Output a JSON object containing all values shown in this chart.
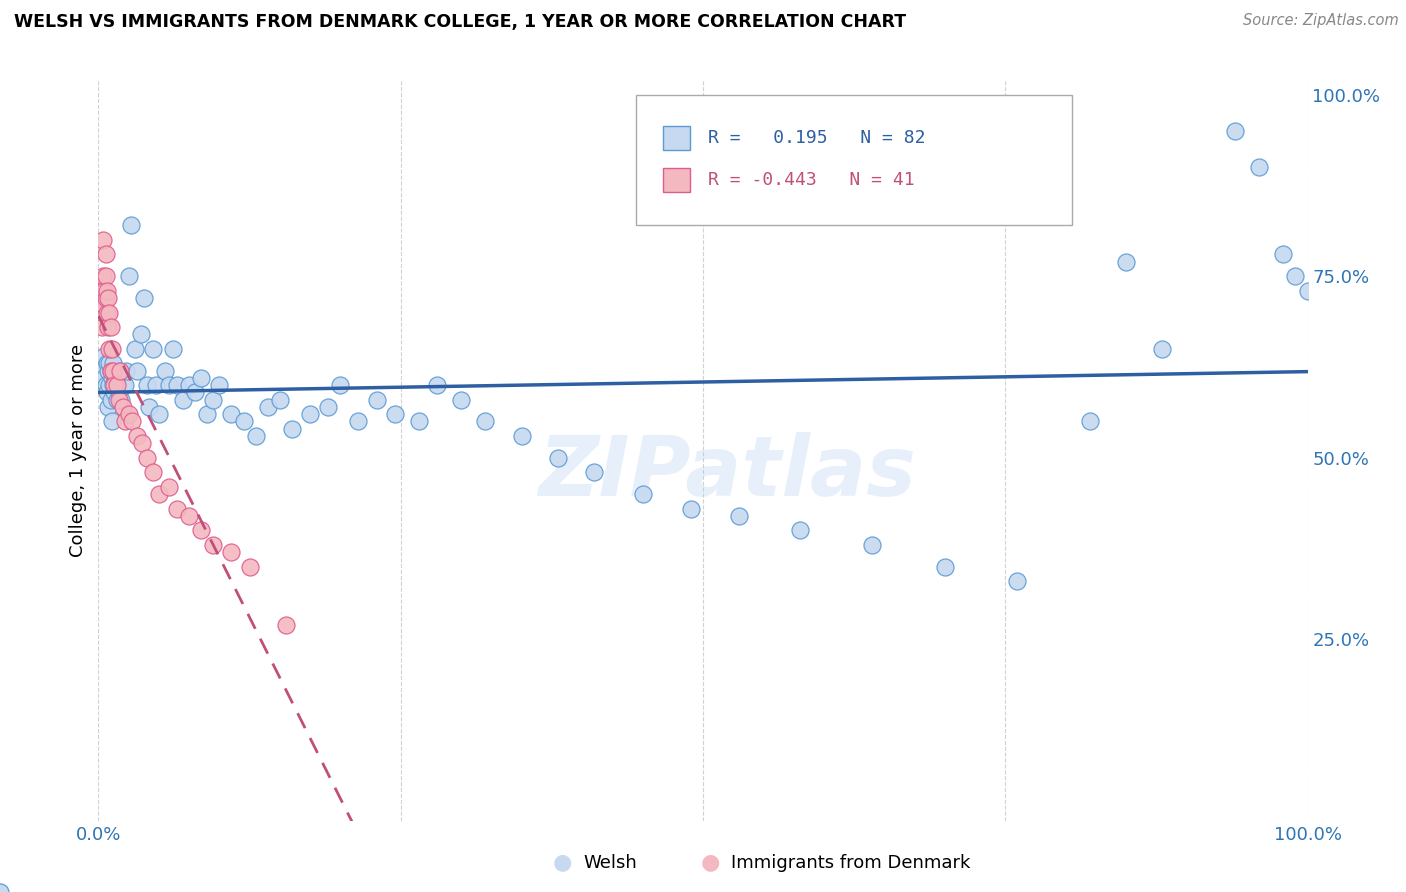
{
  "title": "WELSH VS IMMIGRANTS FROM DENMARK COLLEGE, 1 YEAR OR MORE CORRELATION CHART",
  "source": "Source: ZipAtlas.com",
  "ylabel": "College, 1 year or more",
  "watermark": "ZIPatlas",
  "welsh_color": "#c6d9f0",
  "welsh_edge_color": "#5b9bd5",
  "denmark_color": "#f4b8c1",
  "denmark_edge_color": "#e05c8a",
  "trend_welsh_color": "#2e5fa3",
  "trend_denmark_color": "#c0507a",
  "legend_welsh_label": "R =   0.195   N = 82",
  "legend_denmark_label": "R = -0.443   N = 41",
  "welsh_x": [
    0.003,
    0.005,
    0.005,
    0.006,
    0.007,
    0.007,
    0.008,
    0.008,
    0.009,
    0.009,
    0.01,
    0.01,
    0.011,
    0.011,
    0.012,
    0.012,
    0.013,
    0.014,
    0.015,
    0.016,
    0.017,
    0.018,
    0.019,
    0.02,
    0.022,
    0.023,
    0.025,
    0.027,
    0.03,
    0.032,
    0.035,
    0.038,
    0.04,
    0.042,
    0.045,
    0.048,
    0.05,
    0.055,
    0.058,
    0.062,
    0.065,
    0.07,
    0.075,
    0.08,
    0.085,
    0.09,
    0.095,
    0.1,
    0.11,
    0.12,
    0.13,
    0.14,
    0.15,
    0.16,
    0.175,
    0.19,
    0.2,
    0.215,
    0.23,
    0.245,
    0.265,
    0.28,
    0.3,
    0.32,
    0.35,
    0.38,
    0.41,
    0.45,
    0.49,
    0.53,
    0.58,
    0.64,
    0.7,
    0.76,
    0.82,
    0.88,
    0.94,
    0.96,
    0.98,
    0.99,
    0.85,
    1.0
  ],
  "welsh_y": [
    0.62,
    0.61,
    0.64,
    0.6,
    0.63,
    0.59,
    0.62,
    0.57,
    0.63,
    0.6,
    0.62,
    0.58,
    0.61,
    0.55,
    0.63,
    0.6,
    0.59,
    0.61,
    0.58,
    0.61,
    0.59,
    0.62,
    0.58,
    0.6,
    0.6,
    0.62,
    0.75,
    0.82,
    0.65,
    0.62,
    0.67,
    0.72,
    0.6,
    0.57,
    0.65,
    0.6,
    0.56,
    0.62,
    0.6,
    0.65,
    0.6,
    0.58,
    0.6,
    0.59,
    0.61,
    0.56,
    0.58,
    0.6,
    0.56,
    0.55,
    0.53,
    0.57,
    0.58,
    0.54,
    0.56,
    0.57,
    0.6,
    0.55,
    0.58,
    0.56,
    0.55,
    0.6,
    0.58,
    0.55,
    0.53,
    0.5,
    0.48,
    0.45,
    0.43,
    0.42,
    0.4,
    0.38,
    0.35,
    0.33,
    0.55,
    0.65,
    0.95,
    0.9,
    0.78,
    0.75,
    0.77,
    0.73
  ],
  "denmark_x": [
    0.002,
    0.003,
    0.003,
    0.004,
    0.004,
    0.005,
    0.005,
    0.006,
    0.006,
    0.006,
    0.007,
    0.007,
    0.008,
    0.008,
    0.009,
    0.009,
    0.01,
    0.01,
    0.011,
    0.012,
    0.013,
    0.015,
    0.017,
    0.018,
    0.02,
    0.022,
    0.025,
    0.028,
    0.032,
    0.036,
    0.04,
    0.045,
    0.05,
    0.058,
    0.065,
    0.075,
    0.085,
    0.095,
    0.11,
    0.125,
    0.155
  ],
  "denmark_y": [
    0.73,
    0.72,
    0.68,
    0.8,
    0.75,
    0.71,
    0.73,
    0.78,
    0.72,
    0.75,
    0.7,
    0.73,
    0.68,
    0.72,
    0.7,
    0.65,
    0.68,
    0.62,
    0.65,
    0.62,
    0.6,
    0.6,
    0.58,
    0.62,
    0.57,
    0.55,
    0.56,
    0.55,
    0.53,
    0.52,
    0.5,
    0.48,
    0.45,
    0.46,
    0.43,
    0.42,
    0.4,
    0.38,
    0.37,
    0.35,
    0.27
  ],
  "xlim": [
    0.0,
    1.0
  ],
  "ylim": [
    0.0,
    1.02
  ],
  "xticks": [
    0.0,
    0.25,
    0.5,
    0.75,
    1.0
  ],
  "xticklabels": [
    "0.0%",
    "",
    "",
    "",
    "100.0%"
  ],
  "yticks_right": [
    0.25,
    0.5,
    0.75,
    1.0
  ],
  "yticklabels_right": [
    "25.0%",
    "50.0%",
    "75.0%",
    "100.0%"
  ]
}
